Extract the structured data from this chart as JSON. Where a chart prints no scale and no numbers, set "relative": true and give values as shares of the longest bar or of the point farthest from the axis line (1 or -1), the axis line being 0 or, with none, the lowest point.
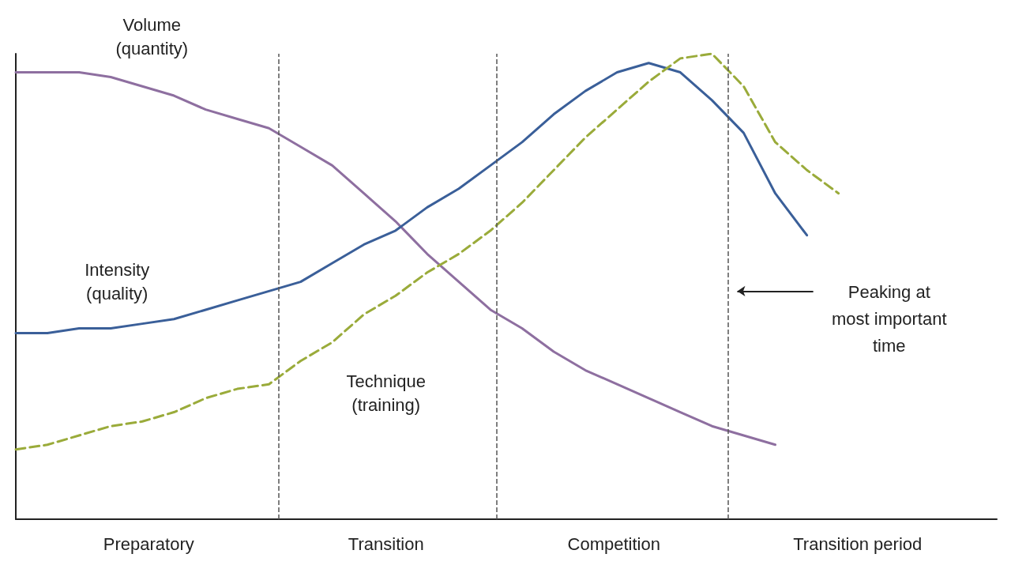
{
  "chart_data": {
    "type": "line",
    "relative": true,
    "grid": false,
    "legend": false,
    "marker": "none",
    "categories": [
      null,
      null,
      null,
      null,
      null,
      null,
      null,
      null,
      null,
      null,
      null,
      null,
      null,
      null,
      null,
      null,
      null,
      null,
      null,
      null,
      null,
      null,
      null,
      null,
      null,
      null,
      null,
      null,
      null,
      null,
      null,
      null
    ],
    "series": [
      {
        "name": "Volume\n(quantity)",
        "color": "#8e6fa0",
        "line_style": "solid",
        "values": [
          0.96,
          0.96,
          0.96,
          0.95,
          0.93,
          0.91,
          0.88,
          0.86,
          0.84,
          0.8,
          0.76,
          0.7,
          0.64,
          0.57,
          0.51,
          0.45,
          0.41,
          0.36,
          0.32,
          0.29,
          0.26,
          0.23,
          0.2,
          0.18,
          0.16,
          null,
          null,
          null,
          null,
          null,
          null,
          null
        ]
      },
      {
        "name": "Intensity\n(quality)",
        "color": "#3a5f99",
        "line_style": "solid",
        "values": [
          0.4,
          0.4,
          0.41,
          0.41,
          0.42,
          0.43,
          0.45,
          0.47,
          0.49,
          0.51,
          0.55,
          0.59,
          0.62,
          0.67,
          0.71,
          0.76,
          0.81,
          0.87,
          0.92,
          0.96,
          0.98,
          0.96,
          0.9,
          0.83,
          0.7,
          0.61,
          null,
          null,
          null,
          null,
          null,
          null
        ]
      },
      {
        "name": "Technique\n(training)",
        "color": "#9aab3a",
        "line_style": "dashed",
        "values": [
          0.15,
          0.16,
          0.18,
          0.2,
          0.21,
          0.23,
          0.26,
          0.28,
          0.29,
          0.34,
          0.38,
          0.44,
          0.48,
          0.53,
          0.57,
          0.62,
          0.68,
          0.75,
          0.82,
          0.88,
          0.94,
          0.99,
          1.0,
          0.93,
          0.81,
          0.75,
          0.7,
          null,
          null,
          null,
          null,
          null
        ]
      }
    ],
    "annotations": [
      "Preparatory",
      "Transition",
      "Competition",
      "Transition period",
      "Peaking at\nmost important\ntime"
    ]
  }
}
